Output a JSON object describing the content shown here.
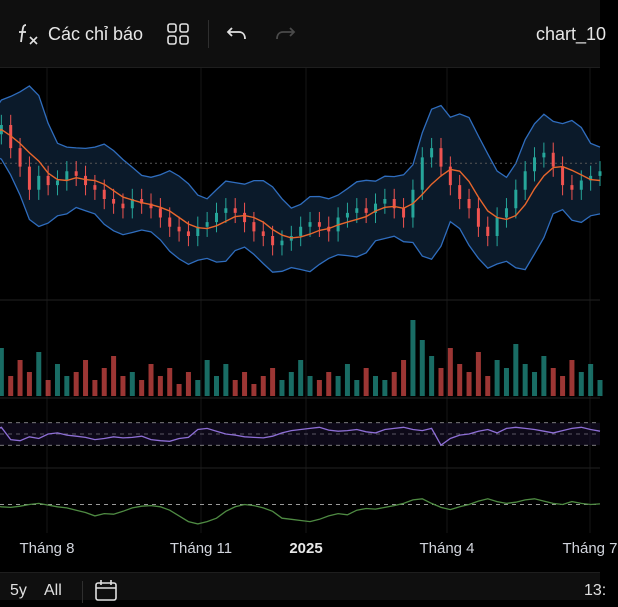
{
  "toolbar": {
    "indicators_label": "Các chỉ báo",
    "chart_title": "chart_10",
    "icons": [
      "function-icon",
      "templates-grid-icon",
      "undo-icon",
      "redo-icon"
    ]
  },
  "colors": {
    "background": "#000000",
    "toolbar": "#0f0f0f",
    "bollinger": "#2f6dbe",
    "bollinger_fill": "#0b1a2a",
    "basis": "#e8662c",
    "candle_up": "#26a69a",
    "candle_down": "#ef5350",
    "rsi": "#8e6fd6",
    "momentum": "#4f8b43",
    "dashed": "#9a9a9a"
  },
  "time_axis": {
    "labels": [
      "Tháng 8",
      "Tháng 11",
      "2025",
      "Tháng 4",
      "Tháng 7"
    ],
    "bold_label": "2025"
  },
  "bottom_bar": {
    "range_5y": "5y",
    "range_all": "All",
    "time": "13:",
    "icons": [
      "calendar-icon"
    ]
  },
  "chart_data": {
    "type": "line",
    "panes": [
      "price",
      "volume",
      "rsi",
      "momentum"
    ],
    "price_series": {
      "name": "",
      "overlays": [
        "Bollinger Bands",
        "basis"
      ],
      "values": [
        100,
        102,
        97,
        93,
        88,
        91,
        89,
        90,
        92,
        91,
        89,
        88,
        86,
        85,
        84,
        86,
        85,
        84,
        82,
        80,
        79,
        78,
        80,
        81,
        83,
        84,
        83,
        81,
        79,
        78,
        76,
        77,
        78,
        80,
        81,
        80,
        79,
        82,
        83,
        84,
        83,
        85,
        86,
        84,
        82,
        88,
        95,
        97,
        93,
        89,
        86,
        84,
        80,
        78,
        82,
        84,
        88,
        92,
        95,
        96,
        93,
        89,
        88,
        90,
        91,
        92
      ]
    },
    "volume": {
      "values": [
        35,
        60,
        25,
        45,
        30,
        55,
        20,
        40,
        25,
        30,
        45,
        20,
        35,
        50,
        25,
        30,
        20,
        40,
        25,
        35,
        15,
        30,
        20,
        45,
        25,
        40,
        20,
        30,
        15,
        25,
        35,
        20,
        30,
        45,
        25,
        20,
        30,
        25,
        40,
        20,
        35,
        25,
        20,
        30,
        45,
        95,
        70,
        50,
        35,
        60,
        40,
        30,
        55,
        25,
        45,
        35,
        65,
        40,
        30,
        50,
        35,
        25,
        45,
        30,
        40,
        20
      ]
    },
    "rsi": {
      "values": [
        55,
        62,
        40,
        38,
        45,
        42,
        50,
        52,
        48,
        46,
        44,
        40,
        42,
        45,
        43,
        44,
        46,
        40,
        38,
        37,
        42,
        44,
        58,
        60,
        55,
        50,
        48,
        45,
        44,
        43,
        46,
        52,
        56,
        58,
        60,
        62,
        57,
        55,
        56,
        58,
        54,
        52,
        58,
        60,
        62,
        58,
        56,
        60,
        30,
        42,
        48,
        50,
        55,
        58,
        52,
        60,
        62,
        60,
        58,
        55,
        52,
        56,
        60,
        62,
        58,
        55
      ],
      "levels": [
        70,
        50,
        30
      ]
    },
    "momentum": {
      "values": [
        48,
        46,
        45,
        47,
        50,
        52,
        49,
        46,
        44,
        40,
        36,
        30,
        34,
        33,
        38,
        44,
        47,
        48,
        46,
        40,
        30,
        20,
        16,
        20,
        26,
        38,
        46,
        50,
        48,
        44,
        38,
        26,
        24,
        22,
        20,
        24,
        30,
        34,
        32,
        40,
        43,
        42,
        45,
        48,
        52,
        58,
        60,
        52,
        45,
        41,
        46,
        50,
        56,
        60,
        55,
        52,
        54,
        58,
        60,
        56,
        52,
        50,
        55,
        52,
        50,
        51
      ],
      "level": 50
    }
  }
}
